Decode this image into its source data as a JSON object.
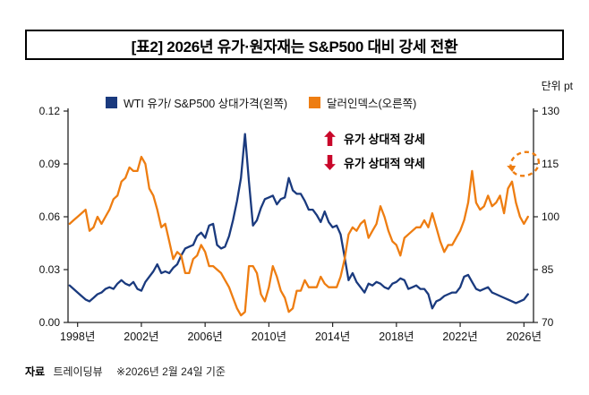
{
  "header": {
    "title": "[표2] 2026년 유가·원자재는 S&P500 대비 강세 전환"
  },
  "chart": {
    "unit_label": "단위 pt",
    "legend": [
      {
        "label": "WTI 유가/ S&P500 상대가격(왼쪽)",
        "color": "#1a3a7e"
      },
      {
        "label": "달러인덱스(오른쪽)",
        "color": "#ee7d11"
      }
    ],
    "annotations": {
      "up_label": "유가 상대적 강세",
      "down_label": "유가 상대적 약세",
      "arrow_color": "#c9072a",
      "highlight_circle": {
        "year": 2026.05,
        "value": 115,
        "axis": "right",
        "color": "#ee7d11"
      }
    }
  },
  "chart_data": {
    "type": "line",
    "title": "[표2] 2026년 유가·원자재는 S&P500 대비 강세 전환",
    "unit": "pt",
    "x_start": 1997.5,
    "x_step": 0.25,
    "x_range": [
      1997.4,
      2026.6
    ],
    "x_tick_years": [
      1998,
      2002,
      2006,
      2010,
      2014,
      2018,
      2022,
      2026
    ],
    "x_tick_labels": [
      "1998년",
      "2002년",
      "2006년",
      "2010년",
      "2014년",
      "2018년",
      "2022년",
      "2026년"
    ],
    "left_axis": {
      "label": "WTI 유가/ S&P500 상대가격",
      "range": [
        0,
        0.12
      ],
      "ticks": [
        0,
        0.03,
        0.06,
        0.09,
        0.12
      ],
      "tick_labels": [
        "0.00",
        "0.03",
        "0.06",
        "0.09",
        "0.12"
      ]
    },
    "right_axis": {
      "label": "달러인덱스",
      "range": [
        70,
        130
      ],
      "ticks": [
        70,
        85,
        100,
        115,
        130
      ],
      "tick_labels": [
        "70",
        "85",
        "100",
        "115",
        "130"
      ]
    },
    "grid": false,
    "legend_position": "top",
    "series": [
      {
        "name": "WTI 유가/ S&P500 상대가격(왼쪽)",
        "axis": "left",
        "color": "#1a3a7e",
        "values": [
          0.021,
          0.019,
          0.017,
          0.015,
          0.013,
          0.012,
          0.014,
          0.016,
          0.017,
          0.019,
          0.02,
          0.019,
          0.022,
          0.024,
          0.022,
          0.021,
          0.023,
          0.019,
          0.018,
          0.023,
          0.026,
          0.029,
          0.033,
          0.028,
          0.029,
          0.028,
          0.031,
          0.033,
          0.038,
          0.042,
          0.043,
          0.044,
          0.049,
          0.051,
          0.048,
          0.055,
          0.056,
          0.044,
          0.042,
          0.043,
          0.049,
          0.058,
          0.069,
          0.082,
          0.107,
          0.08,
          0.055,
          0.058,
          0.065,
          0.07,
          0.071,
          0.072,
          0.067,
          0.07,
          0.071,
          0.082,
          0.075,
          0.073,
          0.073,
          0.069,
          0.064,
          0.064,
          0.061,
          0.057,
          0.063,
          0.057,
          0.054,
          0.055,
          0.05,
          0.037,
          0.024,
          0.028,
          0.023,
          0.02,
          0.017,
          0.022,
          0.021,
          0.023,
          0.022,
          0.02,
          0.019,
          0.022,
          0.023,
          0.025,
          0.024,
          0.019,
          0.02,
          0.021,
          0.019,
          0.019,
          0.016,
          0.008,
          0.012,
          0.013,
          0.015,
          0.016,
          0.017,
          0.017,
          0.02,
          0.026,
          0.027,
          0.023,
          0.019,
          0.018,
          0.019,
          0.02,
          0.017,
          0.016,
          0.015,
          0.014,
          0.013,
          0.012,
          0.011,
          0.012,
          0.013,
          0.016
        ]
      },
      {
        "name": "달러인덱스(오른쪽)",
        "axis": "right",
        "color": "#ee7d11",
        "values": [
          98,
          99,
          100,
          101,
          102,
          96,
          97,
          100,
          98,
          100,
          102,
          105,
          106,
          110,
          111,
          114,
          113,
          113,
          117,
          115,
          108,
          106,
          102,
          97,
          98,
          93,
          88,
          90,
          89,
          84,
          84,
          88,
          89,
          92,
          90,
          86,
          86,
          85,
          84,
          82,
          80,
          77,
          74,
          72,
          73,
          86,
          86,
          84,
          78,
          76,
          80,
          86,
          83,
          79,
          77,
          73,
          74,
          79,
          79,
          82,
          80,
          80,
          80,
          83,
          81,
          80,
          80,
          80,
          83,
          88,
          95,
          97,
          96,
          98,
          99,
          94,
          96,
          98,
          103,
          100,
          96,
          93,
          92,
          89,
          94,
          95,
          96,
          97,
          97,
          99,
          97,
          101,
          97,
          93,
          90,
          92,
          92,
          94,
          96,
          99,
          104,
          113,
          104,
          102,
          103,
          106,
          103,
          104,
          106,
          101,
          108,
          110,
          104,
          100,
          98,
          100
        ]
      }
    ]
  },
  "footer": {
    "source_label": "자료",
    "source_value": "트레이딩뷰",
    "note": "※2026년 2월 24일 기준"
  }
}
